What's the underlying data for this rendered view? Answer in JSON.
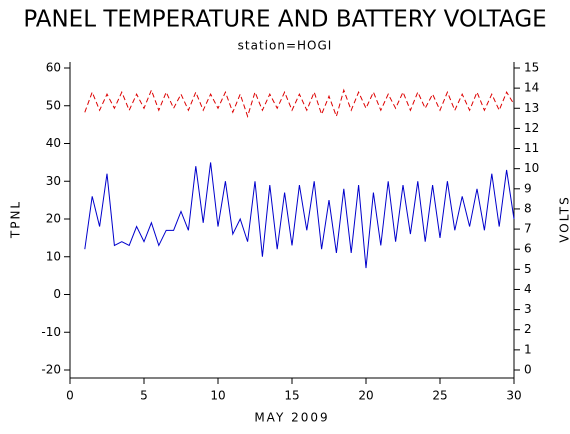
{
  "chart_data": {
    "type": "line",
    "title": "PANEL TEMPERATURE AND BATTERY VOLTAGE",
    "subtitle": "station=HOGI",
    "x_label": "MAY 2009",
    "y_label": "TPNL",
    "y2_label": "VOLTS",
    "x": [
      1,
      1.5,
      2,
      2.5,
      3,
      3.5,
      4,
      4.5,
      5,
      5.5,
      6,
      6.5,
      7,
      7.5,
      8,
      8.5,
      9,
      9.5,
      10,
      10.5,
      11,
      11.5,
      12,
      12.5,
      13,
      13.5,
      14,
      14.5,
      15,
      15.5,
      16,
      16.5,
      17,
      17.5,
      18,
      18.5,
      19,
      19.5,
      20,
      20.5,
      21,
      21.5,
      22,
      22.5,
      23,
      23.5,
      24,
      24.5,
      25,
      25.5,
      26,
      26.5,
      27,
      27.5,
      28,
      28.5,
      29,
      29.5,
      30
    ],
    "series": [
      {
        "name": "TPNL",
        "color": "#0000cc",
        "axis": "y",
        "dashed": false,
        "values": [
          12,
          26,
          18,
          32,
          13,
          14,
          13,
          18,
          14,
          19,
          13,
          17,
          17,
          22,
          17,
          34,
          19,
          35,
          18,
          30,
          16,
          20,
          14,
          30,
          10,
          29,
          12,
          27,
          13,
          29,
          17,
          30,
          12,
          25,
          11,
          28,
          11,
          29,
          7,
          27,
          13,
          30,
          14,
          29,
          16,
          30,
          14,
          29,
          15,
          30,
          17,
          26,
          18,
          28,
          17,
          32,
          18,
          33,
          20
        ]
      },
      {
        "name": "VOLTS",
        "color": "#dd0000",
        "axis": "y2",
        "dashed": true,
        "values": [
          12.8,
          13.8,
          12.9,
          13.7,
          13.0,
          13.8,
          12.9,
          13.7,
          13.0,
          13.9,
          12.9,
          13.8,
          13.0,
          13.7,
          12.9,
          13.8,
          12.9,
          13.7,
          13.0,
          13.8,
          12.8,
          13.7,
          12.6,
          13.8,
          12.9,
          13.7,
          13.0,
          13.8,
          12.9,
          13.7,
          12.9,
          13.8,
          12.7,
          13.6,
          12.6,
          13.9,
          12.9,
          13.8,
          13.0,
          13.8,
          12.9,
          13.7,
          13.0,
          13.8,
          12.9,
          13.8,
          13.0,
          13.7,
          12.9,
          13.8,
          12.9,
          13.7,
          12.9,
          13.8,
          12.9,
          13.7,
          12.9,
          13.8,
          13.2
        ]
      }
    ],
    "xlim": [
      0,
      30
    ],
    "xticks": [
      0,
      5,
      10,
      15,
      20,
      25,
      30
    ],
    "ylim": [
      -20,
      60
    ],
    "yticks": [
      -20,
      -10,
      0,
      10,
      20,
      30,
      40,
      50,
      60
    ],
    "y2lim": [
      0,
      15
    ],
    "y2ticks": [
      0,
      1,
      2,
      3,
      4,
      5,
      6,
      7,
      8,
      9,
      10,
      11,
      12,
      13,
      14,
      15
    ]
  }
}
